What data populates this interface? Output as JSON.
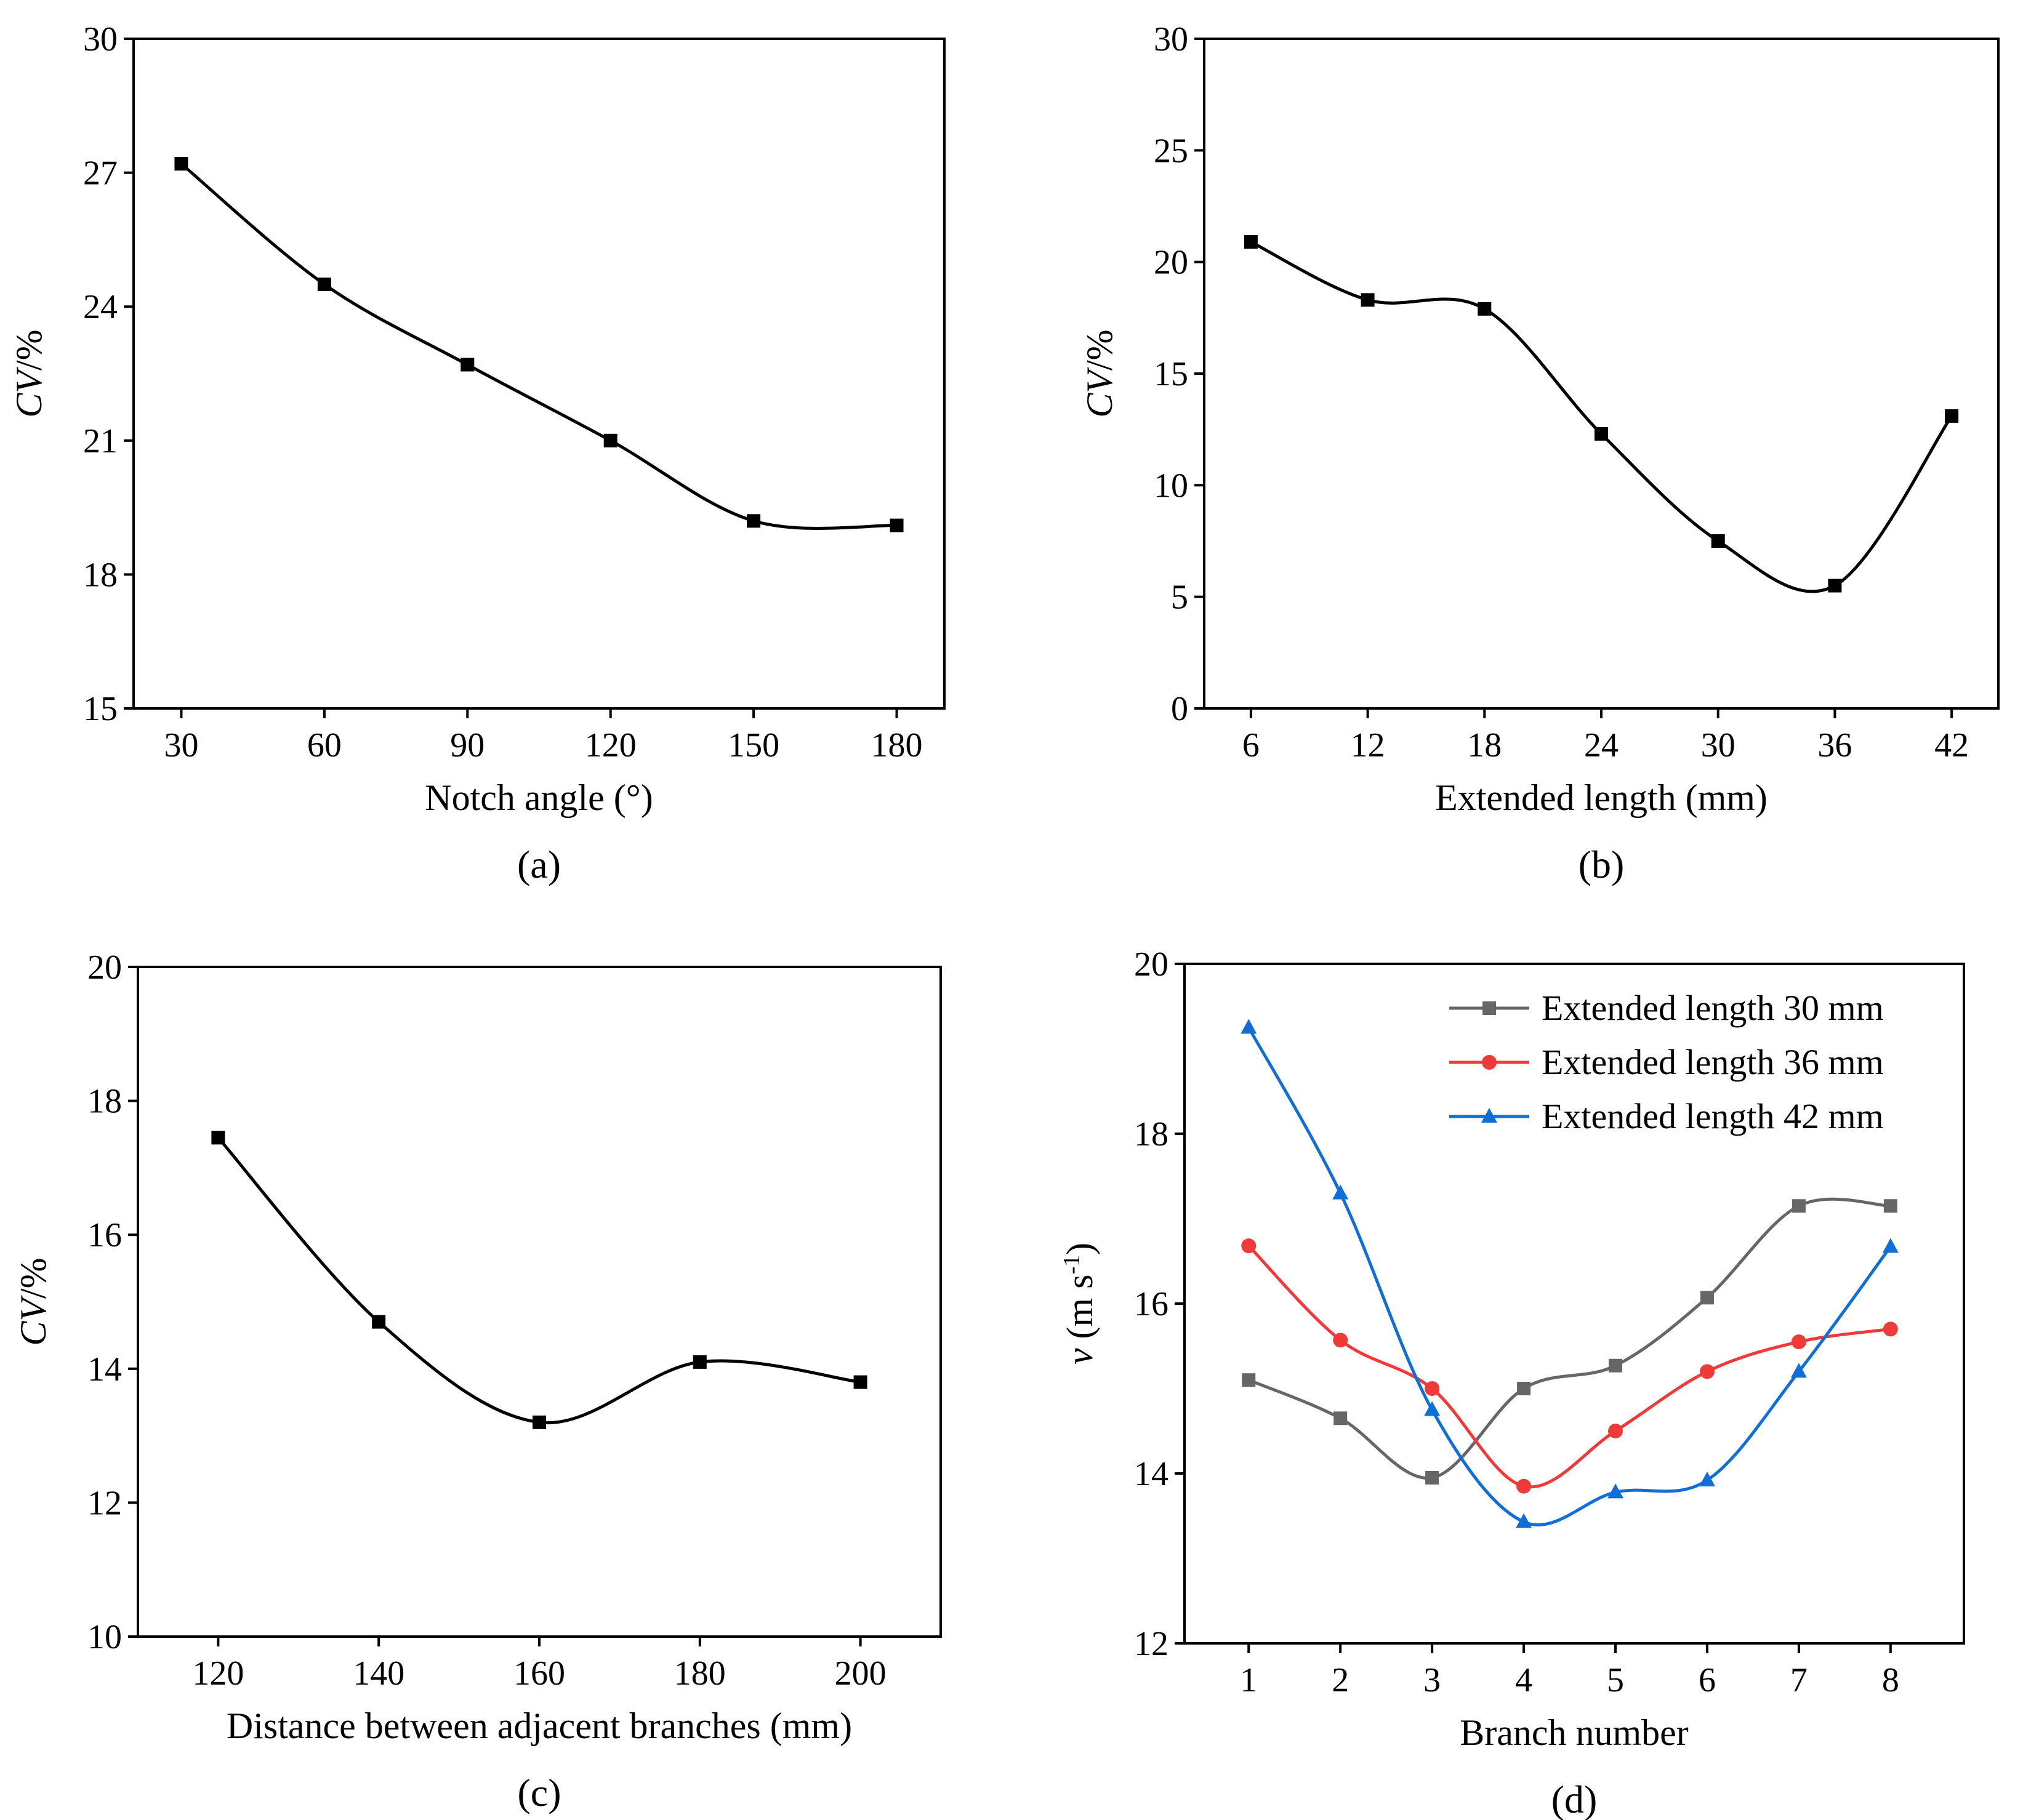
{
  "chart_data": [
    {
      "id": "a",
      "type": "line",
      "panel_label": "(a)",
      "title": "",
      "xlabel": "Notch angle (°)",
      "ylabel_italic": "CV",
      "ylabel_rest": "/%",
      "x": [
        30,
        60,
        90,
        120,
        150,
        180
      ],
      "xticks": [
        30,
        60,
        90,
        120,
        150,
        180
      ],
      "xlim": [
        20,
        190
      ],
      "ylim": [
        15,
        30
      ],
      "yticks": [
        15,
        18,
        21,
        24,
        27,
        30
      ],
      "grid": false,
      "series": [
        {
          "name": "",
          "color": "#000000",
          "marker": "square",
          "values": [
            27.2,
            24.5,
            22.7,
            21.0,
            19.2,
            19.1
          ]
        }
      ]
    },
    {
      "id": "b",
      "type": "line",
      "panel_label": "(b)",
      "title": "",
      "xlabel": "Extended length (mm)",
      "ylabel_italic": "CV",
      "ylabel_rest": "/%",
      "x": [
        6,
        12,
        18,
        24,
        30,
        36,
        42
      ],
      "xticks": [
        6,
        12,
        18,
        24,
        30,
        36,
        42
      ],
      "xlim": [
        3.6,
        44.4
      ],
      "ylim": [
        0,
        30
      ],
      "yticks": [
        0,
        5,
        10,
        15,
        20,
        25,
        30
      ],
      "grid": false,
      "series": [
        {
          "name": "",
          "color": "#000000",
          "marker": "square",
          "values": [
            20.9,
            18.3,
            17.9,
            12.3,
            7.5,
            5.5,
            13.1
          ]
        }
      ]
    },
    {
      "id": "c",
      "type": "line",
      "panel_label": "(c)",
      "title": "",
      "xlabel": "Distance between adjacent branches (mm)",
      "ylabel_italic": "CV",
      "ylabel_rest": "/%",
      "x": [
        120,
        140,
        160,
        180,
        200
      ],
      "xticks": [
        120,
        140,
        160,
        180,
        200
      ],
      "xlim": [
        110,
        210
      ],
      "ylim": [
        10,
        20
      ],
      "yticks": [
        10,
        12,
        14,
        16,
        18,
        20
      ],
      "grid": false,
      "series": [
        {
          "name": "",
          "color": "#000000",
          "marker": "square",
          "values": [
            17.45,
            14.7,
            13.2,
            14.1,
            13.8
          ]
        }
      ]
    },
    {
      "id": "d",
      "type": "line",
      "panel_label": "(d)",
      "title": "",
      "xlabel": "Branch number",
      "ylabel_italic": "v",
      "ylabel_rest": " (m s",
      "ylabel_sup": "-1",
      "ylabel_end": ")",
      "x": [
        1,
        2,
        3,
        4,
        5,
        6,
        7,
        8
      ],
      "xticks": [
        1,
        2,
        3,
        4,
        5,
        6,
        7,
        8
      ],
      "xlim": [
        0.3,
        8.8
      ],
      "ylim": [
        12,
        20
      ],
      "yticks": [
        12,
        14,
        16,
        18,
        20
      ],
      "grid": false,
      "legend_position": "top-right",
      "series": [
        {
          "name": "Extended length 30 mm",
          "color": "#666666",
          "marker": "square",
          "values": [
            15.1,
            14.65,
            13.95,
            15.0,
            15.27,
            16.07,
            17.15,
            17.15
          ]
        },
        {
          "name": "Extended length 36 mm",
          "color": "#f03a3a",
          "marker": "circle",
          "values": [
            16.68,
            15.57,
            15.0,
            13.85,
            14.5,
            15.2,
            15.55,
            15.7
          ]
        },
        {
          "name": "Extended length 42 mm",
          "color": "#0f6fd6",
          "marker": "triangle",
          "values": [
            19.25,
            17.3,
            14.75,
            13.43,
            13.78,
            13.92,
            15.2,
            16.67
          ]
        }
      ]
    }
  ]
}
